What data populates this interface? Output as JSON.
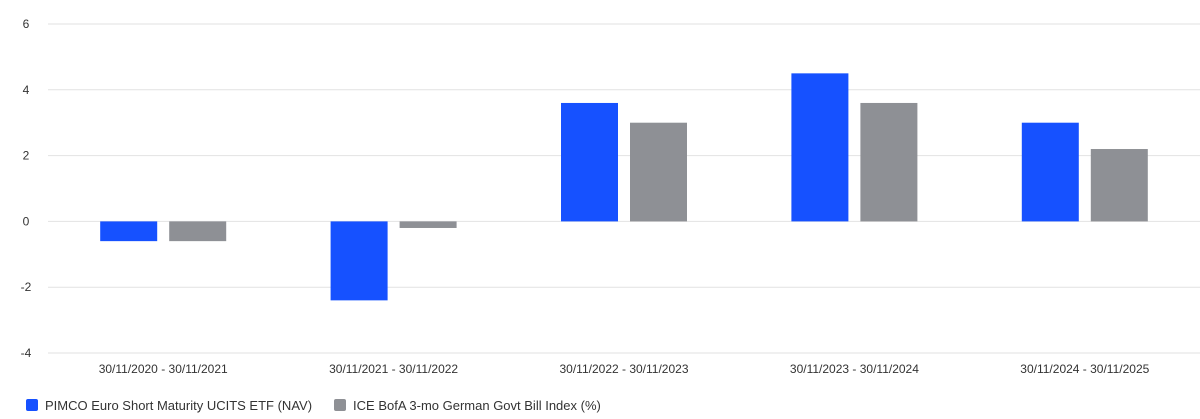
{
  "chart_data": {
    "type": "bar",
    "categories": [
      "30/11/2020 - 30/11/2021",
      "30/11/2021 - 30/11/2022",
      "30/11/2022 - 30/11/2023",
      "30/11/2023 - 30/11/2024",
      "30/11/2024 - 30/11/2025"
    ],
    "series": [
      {
        "name": "PIMCO Euro Short Maturity UCITS ETF (NAV)",
        "color": "#1651ff",
        "values": [
          -0.6,
          -2.4,
          3.6,
          4.5,
          3.0
        ]
      },
      {
        "name": "ICE BofA 3-mo German Govt Bill Index (%)",
        "color": "#8e9095",
        "values": [
          -0.6,
          -0.2,
          3.0,
          3.6,
          2.2
        ]
      }
    ],
    "y_ticks": [
      "6",
      "4",
      "2",
      "0",
      "-2",
      "-4"
    ],
    "ylim": [
      -4,
      6
    ],
    "grid": true,
    "legend_position": "bottom-left",
    "title": "",
    "xlabel": "",
    "ylabel": ""
  }
}
